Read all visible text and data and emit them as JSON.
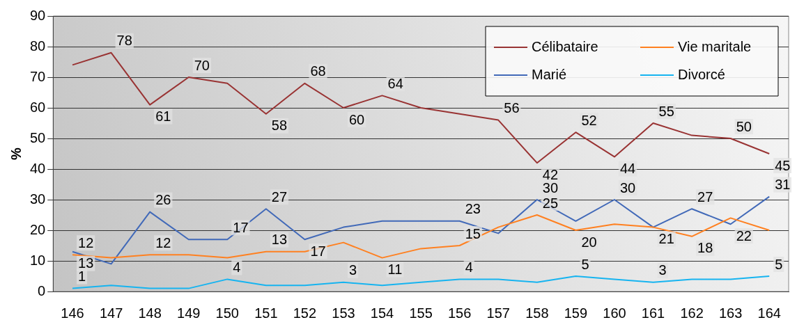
{
  "chart_data": {
    "type": "line",
    "ylabel": "%",
    "categories": [
      "146",
      "147",
      "148",
      "149",
      "150",
      "151",
      "152",
      "153",
      "154",
      "155",
      "156",
      "157",
      "158",
      "159",
      "160",
      "161",
      "162",
      "163",
      "164"
    ],
    "series": [
      {
        "name": "Célibataire",
        "color": "#993333",
        "values": [
          74,
          78,
          61,
          70,
          68,
          58,
          68,
          60,
          64,
          60,
          58,
          56,
          42,
          52,
          44,
          55,
          51,
          50,
          45
        ],
        "value_labels": [
          null,
          "78",
          "61",
          "70",
          null,
          "58",
          "68",
          "60",
          "64",
          null,
          null,
          "56",
          "42",
          "52",
          "44",
          "55",
          null,
          "50",
          "45"
        ]
      },
      {
        "name": "Vie maritale",
        "color": "#ff8020",
        "values": [
          12,
          11,
          12,
          12,
          11,
          13,
          13,
          16,
          11,
          14,
          15,
          21,
          25,
          20,
          22,
          21,
          18,
          24,
          20
        ],
        "value_labels": [
          "12",
          null,
          "12",
          null,
          null,
          "13",
          null,
          null,
          "11",
          null,
          "15",
          null,
          "25",
          "20",
          null,
          null,
          "18",
          null,
          null
        ]
      },
      {
        "name": "Marié",
        "color": "#4169b8",
        "values": [
          13,
          9,
          26,
          17,
          17,
          27,
          17,
          21,
          23,
          23,
          23,
          19,
          30,
          23,
          30,
          21,
          27,
          22,
          31
        ],
        "value_labels": [
          "13",
          null,
          "26",
          null,
          "17",
          "27",
          "17",
          null,
          null,
          null,
          "23",
          null,
          "30",
          null,
          "30",
          "21",
          "27",
          "22",
          "31"
        ]
      },
      {
        "name": "Divorcé",
        "color": "#16b4f0",
        "values": [
          1,
          2,
          1,
          1,
          4,
          2,
          2,
          3,
          2,
          3,
          4,
          4,
          3,
          5,
          4,
          3,
          4,
          4,
          5
        ],
        "value_labels": [
          "1",
          null,
          null,
          null,
          "4",
          null,
          null,
          "3",
          null,
          null,
          "4",
          null,
          null,
          "5",
          null,
          "3",
          null,
          null,
          "5"
        ]
      }
    ],
    "ylim": [
      0,
      90
    ],
    "yticks": [
      0,
      10,
      20,
      30,
      40,
      50,
      60,
      70,
      80,
      90
    ],
    "grid": "y",
    "legend": "top right",
    "marker": "none",
    "line_style": "solid"
  }
}
